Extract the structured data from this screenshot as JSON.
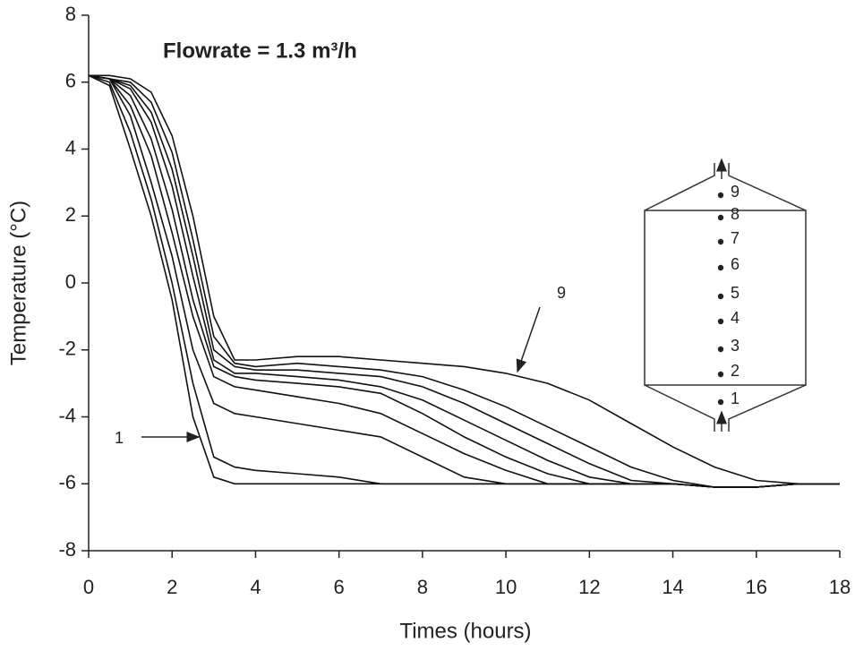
{
  "chart_data": {
    "type": "line",
    "title": "Flowrate = 1.3 m³/h",
    "x_label": "Times (hours)",
    "y_label": "Temperature (°C)",
    "x": [
      0,
      0.5,
      1,
      1.5,
      2,
      2.5,
      3,
      3.5,
      4,
      5,
      6,
      7,
      8,
      9,
      10,
      11,
      12,
      13,
      14,
      15,
      16,
      17,
      18
    ],
    "series": [
      {
        "name": "1",
        "color": "#111",
        "values": [
          6.2,
          5.9,
          4,
          2,
          -0.5,
          -4,
          -5.8,
          -6,
          -6,
          -6,
          -6,
          -6,
          -6,
          -6,
          -6,
          -6,
          -6,
          -6,
          -6,
          -6.1,
          -6.1,
          -6,
          -6
        ]
      },
      {
        "name": "2",
        "color": "#111",
        "values": [
          6.2,
          6,
          4.5,
          2.5,
          0,
          -3,
          -5.2,
          -5.5,
          -5.6,
          -5.7,
          -5.8,
          -6,
          -6,
          -6,
          -6,
          -6,
          -6,
          -6,
          -6,
          -6.1,
          -6.1,
          -6,
          -6
        ]
      },
      {
        "name": "3",
        "color": "#111",
        "values": [
          6.2,
          6.1,
          5,
          3,
          0.8,
          -2,
          -3.6,
          -3.9,
          -4,
          -4.2,
          -4.4,
          -4.6,
          -5.2,
          -5.8,
          -6,
          -6,
          -6,
          -6,
          -6,
          -6.1,
          -6.1,
          -6,
          -6
        ]
      },
      {
        "name": "4",
        "color": "#111",
        "values": [
          6.2,
          6.1,
          5.3,
          3.8,
          1.5,
          -1,
          -2.8,
          -3.1,
          -3.2,
          -3.4,
          -3.6,
          -3.9,
          -4.5,
          -5.1,
          -5.6,
          -6,
          -6,
          -6,
          -6,
          -6.1,
          -6.1,
          -6,
          -6
        ]
      },
      {
        "name": "5",
        "color": "#111",
        "values": [
          6.2,
          6.1,
          5.6,
          4.3,
          2.2,
          -0.5,
          -2.5,
          -2.8,
          -2.9,
          -3,
          -3.1,
          -3.3,
          -3.9,
          -4.6,
          -5.2,
          -5.7,
          -6,
          -6,
          -6,
          -6.1,
          -6.1,
          -6,
          -6
        ]
      },
      {
        "name": "6",
        "color": "#111",
        "values": [
          6.2,
          6.1,
          5.8,
          4.8,
          2.9,
          0.2,
          -2.3,
          -2.7,
          -2.7,
          -2.8,
          -2.9,
          -3.1,
          -3.5,
          -4.1,
          -4.7,
          -5.3,
          -5.8,
          -6,
          -6,
          -6.1,
          -6.1,
          -6,
          -6
        ]
      },
      {
        "name": "7",
        "color": "#111",
        "values": [
          6.2,
          6.1,
          5.9,
          5.1,
          3.4,
          0.8,
          -2,
          -2.5,
          -2.6,
          -2.6,
          -2.7,
          -2.8,
          -3.1,
          -3.6,
          -4.2,
          -4.8,
          -5.4,
          -5.9,
          -6,
          -6.1,
          -6.1,
          -6,
          -6
        ]
      },
      {
        "name": "8",
        "color": "#111",
        "values": [
          6.2,
          6.1,
          6,
          5.4,
          3.9,
          1.3,
          -1.6,
          -2.4,
          -2.5,
          -2.4,
          -2.5,
          -2.6,
          -2.8,
          -3.2,
          -3.7,
          -4.3,
          -4.9,
          -5.5,
          -5.9,
          -6.1,
          -6.1,
          -6,
          -6
        ]
      },
      {
        "name": "9",
        "color": "#111",
        "values": [
          6.2,
          6.2,
          6.1,
          5.7,
          4.4,
          2,
          -1,
          -2.3,
          -2.3,
          -2.2,
          -2.2,
          -2.3,
          -2.4,
          -2.5,
          -2.7,
          -3,
          -3.5,
          -4.2,
          -4.9,
          -5.5,
          -5.9,
          -6,
          -6
        ]
      }
    ],
    "xlim": [
      0,
      18
    ],
    "xticks": [
      0,
      2,
      4,
      6,
      8,
      10,
      12,
      14,
      16,
      18
    ],
    "ylim": [
      -8,
      8
    ],
    "yticks": [
      -8,
      -6,
      -4,
      -2,
      0,
      2,
      4,
      6,
      8
    ],
    "grid": false,
    "annotations": [
      "9",
      "1"
    ],
    "sensor_labels": [
      "1",
      "2",
      "3",
      "4",
      "5",
      "6",
      "7",
      "8",
      "9"
    ]
  }
}
